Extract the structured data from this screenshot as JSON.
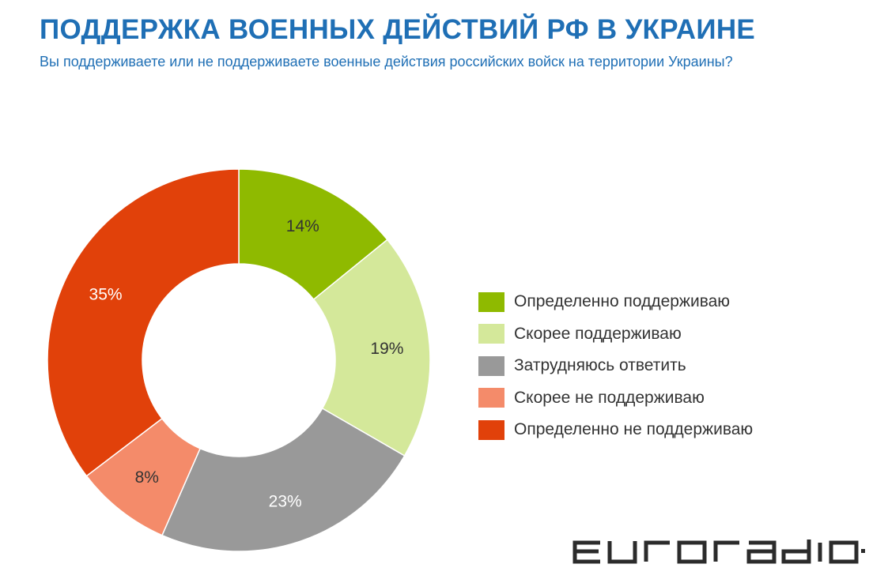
{
  "header": {
    "title": "ПОДДЕРЖКА ВОЕННЫХ ДЕЙСТВИЙ РФ В УКРАИНЕ",
    "subtitle": "Вы поддерживаете или не поддерживаете военные действия российских войск на территории Украины?"
  },
  "chart_data": {
    "type": "pie",
    "variant": "donut",
    "legend_position": "right",
    "categories": [
      "Определенно поддерживаю",
      "Скорее поддерживаю",
      "Затрудняюсь ответить",
      "Скорее не поддерживаю",
      "Определенно не поддерживаю"
    ],
    "values": [
      14,
      19,
      23,
      8,
      35
    ],
    "value_labels": [
      "14%",
      "19%",
      "23%",
      "8%",
      "35%"
    ],
    "colors": [
      "#8fba00",
      "#d4e89a",
      "#999999",
      "#f48b6a",
      "#e1410a"
    ]
  },
  "brand": {
    "logo_text": "euroradio·fm",
    "logo_icon": "euroradio-logo"
  }
}
